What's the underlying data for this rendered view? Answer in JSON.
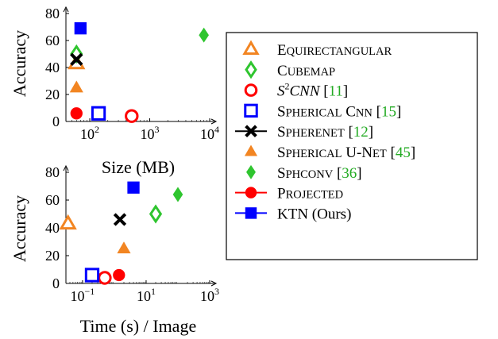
{
  "charts": [
    {
      "type": "scatter",
      "xlabel": "Size (MB)",
      "ylabel": "Accuracy",
      "xscale": "log",
      "xlim": [
        40,
        10000
      ],
      "ylim": [
        0,
        80
      ],
      "xticks": [
        {
          "v": 100,
          "b": "10",
          "e": "2"
        },
        {
          "v": 1000,
          "b": "10",
          "e": "3"
        },
        {
          "v": 10000,
          "b": "10",
          "e": "4"
        }
      ],
      "yticks": [
        0,
        20,
        40,
        60,
        80
      ],
      "points": [
        {
          "series": "Equirectangular",
          "x": 60,
          "y": 43
        },
        {
          "series": "Cubemap",
          "x": 60,
          "y": 50
        },
        {
          "series": "S2CNN",
          "x": 500,
          "y": 4
        },
        {
          "series": "Spherical CNN",
          "x": 140,
          "y": 6
        },
        {
          "series": "SphereNet",
          "x": 60,
          "y": 46
        },
        {
          "series": "Spherical U-Net",
          "x": 60,
          "y": 25
        },
        {
          "series": "SphConv",
          "x": 8000,
          "y": 64
        },
        {
          "series": "Projected",
          "x": 60,
          "y": 6
        },
        {
          "series": "KTN",
          "x": 70,
          "y": 69
        }
      ]
    },
    {
      "type": "scatter",
      "xlabel": "Time (s) / Image",
      "ylabel": "Accuracy",
      "xscale": "log",
      "xlim": [
        0.03,
        1000
      ],
      "ylim": [
        0,
        80
      ],
      "xticks": [
        {
          "v": 0.1,
          "b": "10",
          "e": "−1"
        },
        {
          "v": 10,
          "b": "10",
          "e": "1"
        },
        {
          "v": 1000,
          "b": "10",
          "e": "3"
        }
      ],
      "yticks": [
        0,
        20,
        40,
        60,
        80
      ],
      "points": [
        {
          "series": "Equirectangular",
          "x": 0.035,
          "y": 43
        },
        {
          "series": "Cubemap",
          "x": 20,
          "y": 50
        },
        {
          "series": "S2CNN",
          "x": 0.5,
          "y": 4
        },
        {
          "series": "Spherical CNN",
          "x": 0.2,
          "y": 6
        },
        {
          "series": "SphereNet",
          "x": 1.5,
          "y": 46
        },
        {
          "series": "Spherical U-Net",
          "x": 2,
          "y": 25
        },
        {
          "series": "SphConv",
          "x": 100,
          "y": 64
        },
        {
          "series": "Projected",
          "x": 1.4,
          "y": 6
        },
        {
          "series": "KTN",
          "x": 4,
          "y": 69
        }
      ]
    }
  ],
  "legend": {
    "placement": "right",
    "items": [
      {
        "key": "Equirectangular",
        "marker": "triangle-open",
        "color": "#f28522",
        "parts": [
          [
            "sc",
            "Equirectangular"
          ]
        ]
      },
      {
        "key": "Cubemap",
        "marker": "diamond-open",
        "color": "#2fc52f",
        "parts": [
          [
            "sc",
            "Cubemap"
          ]
        ]
      },
      {
        "key": "S2CNN",
        "marker": "circle-open",
        "color": "#ff0000",
        "parts": [
          [
            "it",
            "S"
          ],
          [
            "sup",
            "2"
          ],
          [
            "it",
            "CNN"
          ],
          [
            "n",
            " ["
          ],
          [
            "lnk",
            "11"
          ],
          [
            "n",
            "]"
          ]
        ]
      },
      {
        "key": "Spherical CNN",
        "marker": "square-open",
        "color": "#0000ff",
        "parts": [
          [
            "sc",
            "Spherical CNN"
          ],
          [
            "n",
            " ["
          ],
          [
            "lnk",
            "15"
          ],
          [
            "n",
            "]"
          ]
        ]
      },
      {
        "key": "SphereNet",
        "marker": "cross-line",
        "color": "#000000",
        "parts": [
          [
            "sc",
            "SphereNet"
          ],
          [
            "n",
            " ["
          ],
          [
            "lnk",
            "12"
          ],
          [
            "n",
            "]"
          ]
        ]
      },
      {
        "key": "Spherical U-Net",
        "marker": "triangle",
        "color": "#f28522",
        "parts": [
          [
            "sc",
            "Spherical U-Net"
          ],
          [
            "n",
            " ["
          ],
          [
            "lnk",
            "45"
          ],
          [
            "n",
            "]"
          ]
        ]
      },
      {
        "key": "SphConv",
        "marker": "diamond",
        "color": "#2fc52f",
        "parts": [
          [
            "sc",
            "SphConv"
          ],
          [
            "n",
            " ["
          ],
          [
            "lnk",
            "36"
          ],
          [
            "n",
            "]"
          ]
        ]
      },
      {
        "key": "Projected",
        "marker": "circle-line",
        "color": "#ff0000",
        "parts": [
          [
            "sc",
            "Projected"
          ]
        ]
      },
      {
        "key": "KTN",
        "marker": "square-line",
        "color": "#0000ff",
        "parts": [
          [
            "n",
            "KTN (Ours)"
          ]
        ]
      }
    ]
  },
  "styles": {
    "Equirectangular": {
      "marker": "triangle-open",
      "color": "#f28522"
    },
    "Cubemap": {
      "marker": "diamond-open",
      "color": "#2fc52f"
    },
    "S2CNN": {
      "marker": "circle-open",
      "color": "#ff0000"
    },
    "Spherical CNN": {
      "marker": "square-open",
      "color": "#0000ff"
    },
    "SphereNet": {
      "marker": "cross",
      "color": "#000000"
    },
    "Spherical U-Net": {
      "marker": "triangle",
      "color": "#f28522"
    },
    "SphConv": {
      "marker": "diamond",
      "color": "#2fc52f"
    },
    "Projected": {
      "marker": "circle",
      "color": "#ff0000"
    },
    "KTN": {
      "marker": "square",
      "color": "#0000ff"
    }
  },
  "link_color": "#22aa22"
}
